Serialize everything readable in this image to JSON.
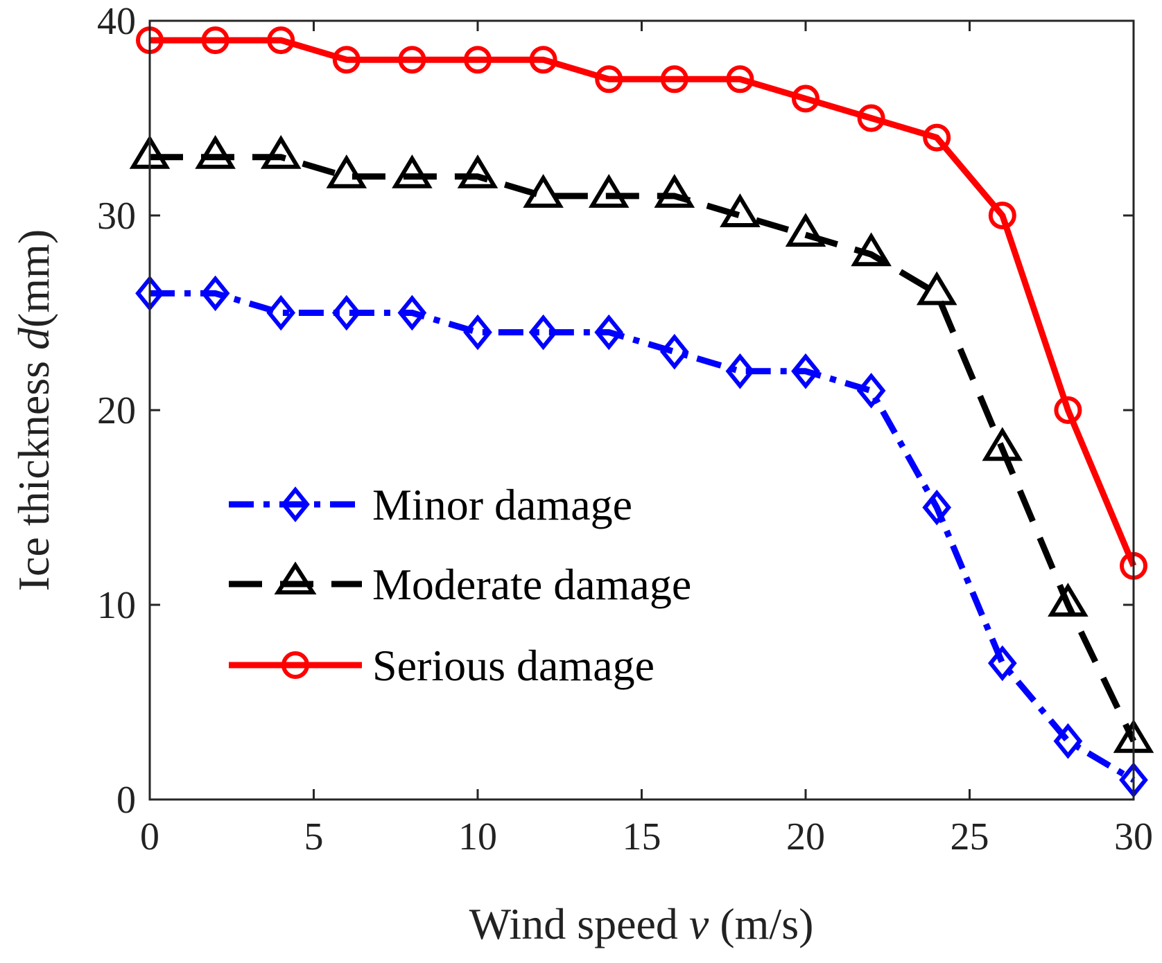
{
  "chart_data": {
    "type": "line",
    "title": "",
    "xlabel": {
      "main": "Wind speed ",
      "var": "v",
      "unit": " (m/s)"
    },
    "ylabel": {
      "main": "Ice thickness ",
      "var": "d",
      "unit": "(mm)"
    },
    "xlim": [
      0,
      30
    ],
    "ylim": [
      0,
      40
    ],
    "xticks": [
      0,
      5,
      10,
      15,
      20,
      25,
      30
    ],
    "yticks": [
      0,
      10,
      20,
      30,
      40
    ],
    "x": [
      0,
      2,
      4,
      6,
      8,
      10,
      12,
      14,
      16,
      18,
      20,
      22,
      24,
      26,
      28,
      30
    ],
    "grid": false,
    "legend_position": "center-left",
    "series": [
      {
        "name": "Minor damage",
        "color": "#0000ff",
        "line_style": "dash-dot",
        "marker": "diamond",
        "values": [
          26,
          26,
          25,
          25,
          25,
          24,
          24,
          24,
          23,
          22,
          22,
          21,
          15,
          7,
          3,
          1
        ]
      },
      {
        "name": "Moderate damage",
        "color": "#000000",
        "line_style": "dashed",
        "marker": "triangle",
        "values": [
          33,
          33,
          33,
          32,
          32,
          32,
          31,
          31,
          31,
          30,
          29,
          28,
          26,
          18,
          10,
          3
        ]
      },
      {
        "name": "Serious damage",
        "color": "#ff0000",
        "line_style": "solid",
        "marker": "circle",
        "values": [
          39,
          39,
          39,
          38,
          38,
          38,
          38,
          37,
          37,
          37,
          36,
          35,
          34,
          30,
          20,
          12
        ]
      }
    ]
  }
}
